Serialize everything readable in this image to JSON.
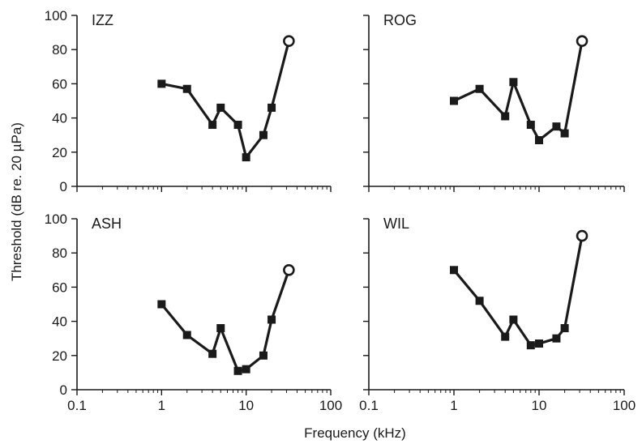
{
  "chart_data": {
    "type": "line",
    "xlabel": "Frequency (kHz)",
    "ylabel": "Threshold (dB re. 20 µPa)",
    "x_scale": "log",
    "xlim": [
      0.1,
      100
    ],
    "ylim": [
      0,
      100
    ],
    "x_ticks": [
      0.1,
      1,
      10,
      100
    ],
    "x_tick_labels": [
      "0.1",
      "1",
      "10",
      "100"
    ],
    "y_ticks": [
      0,
      20,
      40,
      60,
      80,
      100
    ],
    "y_tick_labels": [
      "0",
      "20",
      "40",
      "60",
      "80",
      "100"
    ],
    "grid": false,
    "panels": [
      {
        "label": "IZZ",
        "x": [
          1,
          2,
          4,
          5,
          8,
          10,
          16,
          20
        ],
        "y": [
          60,
          57,
          36,
          46,
          36,
          17,
          30,
          46
        ],
        "open_point": {
          "x": 32,
          "y": 85
        }
      },
      {
        "label": "ROG",
        "x": [
          1,
          2,
          4,
          5,
          8,
          10,
          16,
          20
        ],
        "y": [
          50,
          57,
          41,
          61,
          36,
          27,
          35,
          31
        ],
        "open_point": {
          "x": 32,
          "y": 85
        }
      },
      {
        "label": "ASH",
        "x": [
          1,
          2,
          4,
          5,
          8,
          10,
          16,
          20
        ],
        "y": [
          50,
          32,
          21,
          36,
          11,
          12,
          20,
          41
        ],
        "open_point": {
          "x": 32,
          "y": 70
        }
      },
      {
        "label": "WIL",
        "x": [
          1,
          2,
          4,
          5,
          8,
          10,
          16,
          20
        ],
        "y": [
          70,
          52,
          31,
          41,
          26,
          27,
          30,
          36
        ],
        "open_point": {
          "x": 32,
          "y": 90
        }
      }
    ]
  }
}
